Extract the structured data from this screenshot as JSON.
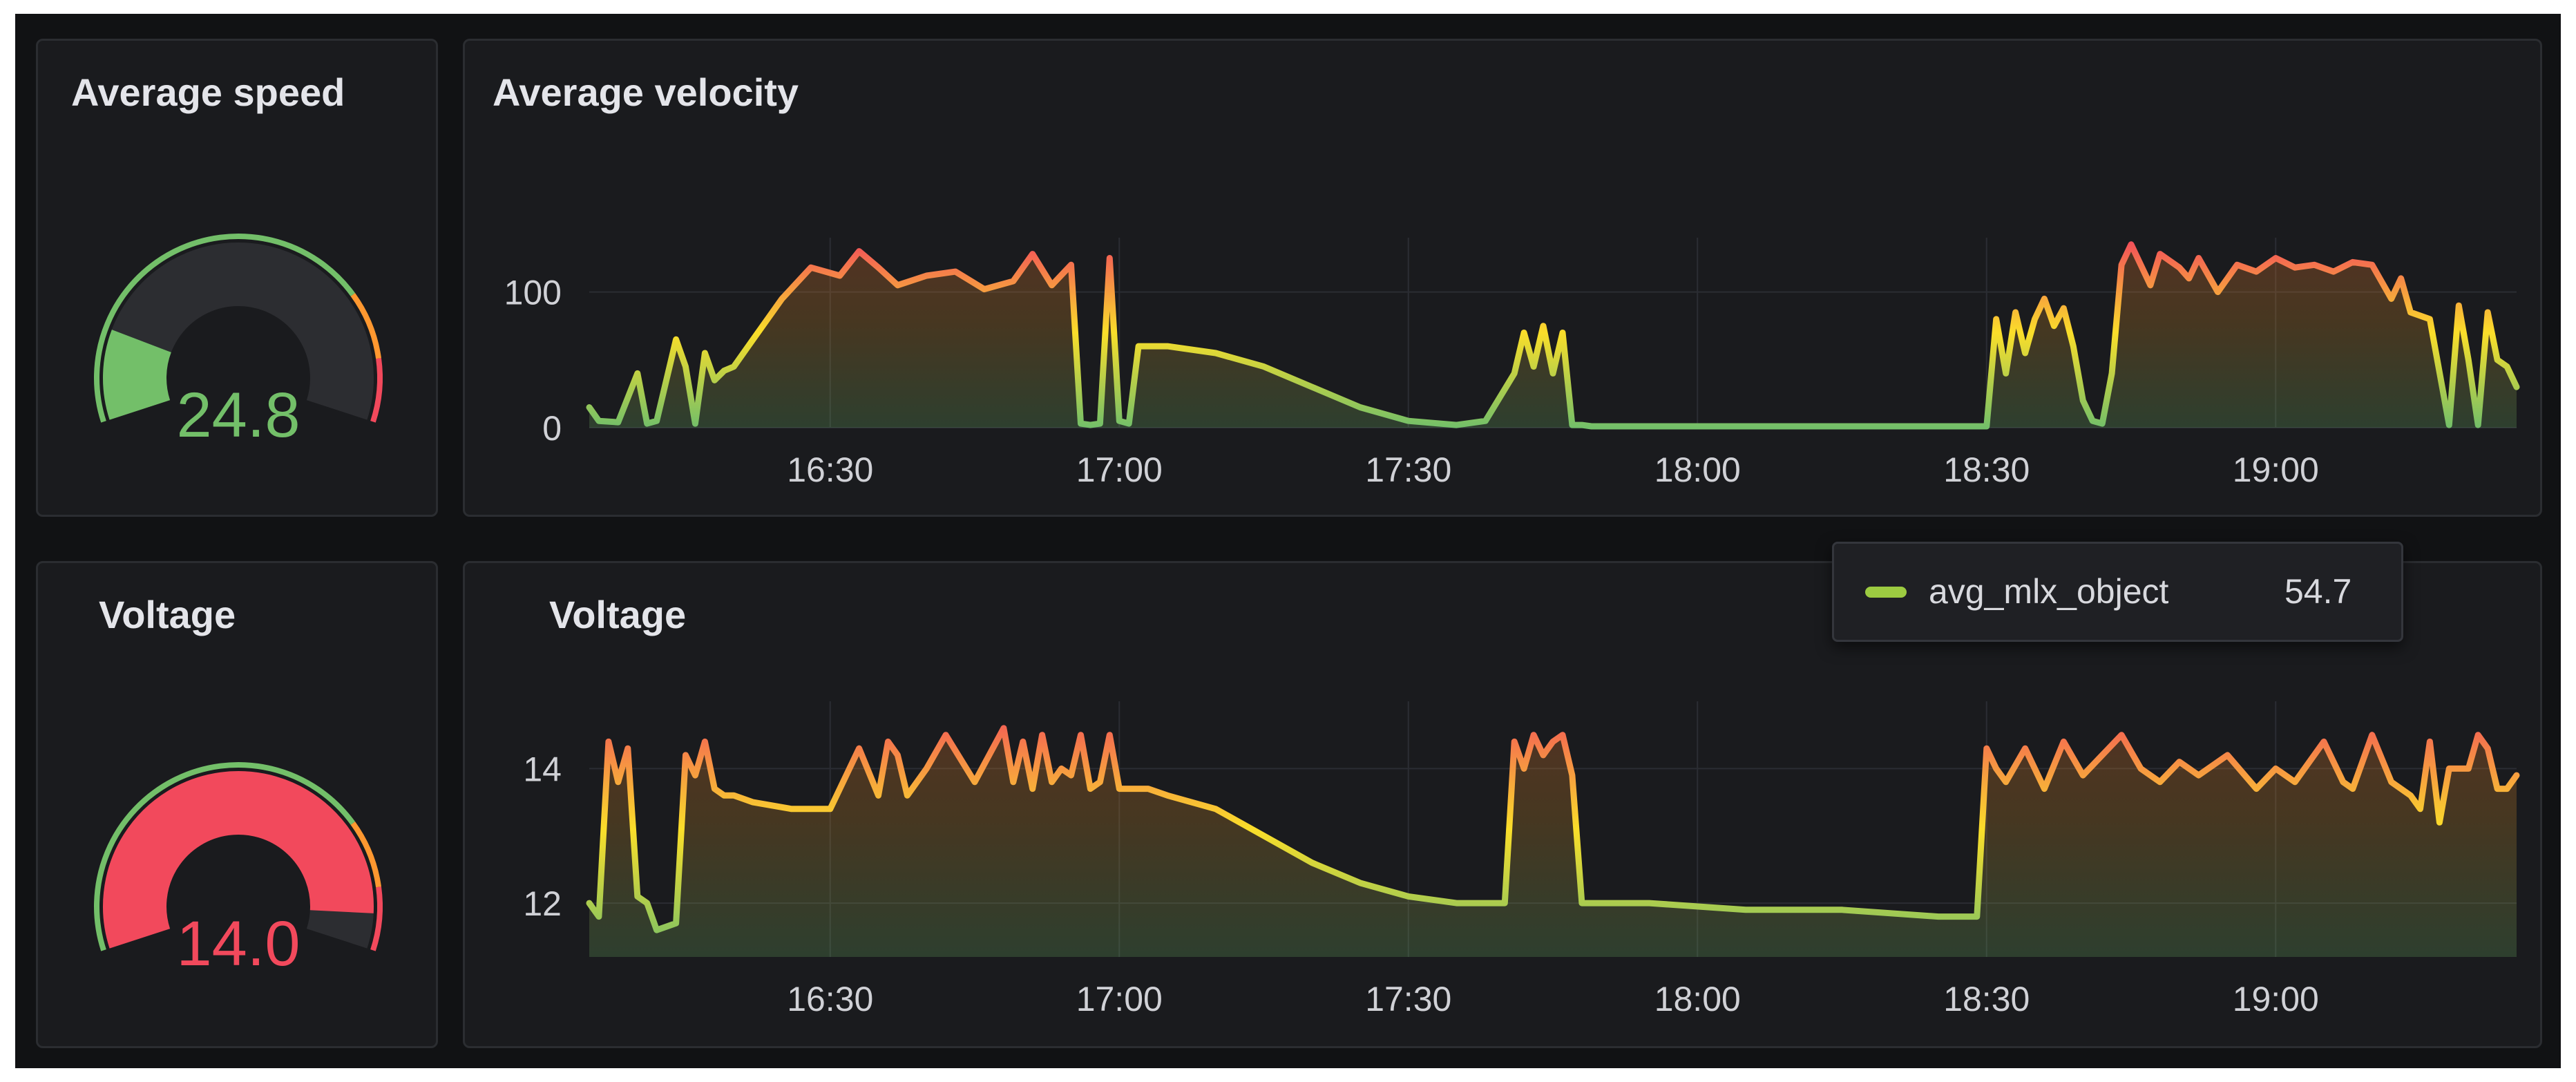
{
  "colors": {
    "background": "#111214",
    "panel": "#1a1b1e",
    "panel_border": "#2b2d31",
    "text": "#e4e5ea",
    "axis_text": "#d0d1d6",
    "series_low": "#73bf69",
    "series_mid": "#fade2a",
    "series_high": "#f2495c",
    "speed_value": "#73bf69",
    "voltage_value": "#f2495c"
  },
  "panels": {
    "speed_gauge": {
      "title": "Average speed",
      "value": "24.8"
    },
    "velocity_chart": {
      "title": "Average velocity"
    },
    "voltage_gauge": {
      "title": "Voltage",
      "value": "14.0"
    },
    "voltage_chart": {
      "title": "Voltage"
    }
  },
  "tooltip": {
    "series": "avg_mlx_object",
    "value": "54.7",
    "swatch_color": "#9ccb41"
  },
  "chart_data": [
    {
      "type": "line",
      "id": "velocity",
      "title": "Average velocity",
      "xlabel": "",
      "ylabel": "",
      "xlim": [
        "16:05",
        "19:25"
      ],
      "ylim": [
        0,
        140
      ],
      "x_ticks": [
        "16:30",
        "17:00",
        "17:30",
        "18:00",
        "18:30",
        "19:00"
      ],
      "y_ticks": [
        0,
        100
      ],
      "grid": true,
      "fill": "gradient",
      "series": [
        {
          "x": [
            "16:05",
            "16:06",
            "16:08",
            "16:10",
            "16:11",
            "16:12",
            "16:14",
            "16:15",
            "16:16",
            "16:17",
            "16:18",
            "16:19",
            "16:20",
            "16:22",
            "16:25",
            "16:28",
            "16:31",
            "16:33",
            "16:35",
            "16:37",
            "16:40",
            "16:43",
            "16:46",
            "16:49",
            "16:51",
            "16:53",
            "16:55",
            "16:56",
            "16:57",
            "16:58",
            "16:59",
            "17:00",
            "17:01",
            "17:02",
            "17:05",
            "17:10",
            "17:15",
            "17:20",
            "17:25",
            "17:30",
            "17:35",
            "17:38",
            "17:41",
            "17:42",
            "17:43",
            "17:44",
            "17:45",
            "17:46",
            "17:47",
            "17:48",
            "17:49",
            "17:55",
            "18:05",
            "18:15",
            "18:25",
            "18:30",
            "18:31",
            "18:32",
            "18:33",
            "18:34",
            "18:35",
            "18:36",
            "18:37",
            "18:38",
            "18:39",
            "18:40",
            "18:41",
            "18:42",
            "18:43",
            "18:44",
            "18:45",
            "18:47",
            "18:48",
            "18:50",
            "18:51",
            "18:52",
            "18:54",
            "18:56",
            "18:58",
            "19:00",
            "19:02",
            "19:04",
            "19:06",
            "19:08",
            "19:10",
            "19:12",
            "19:13",
            "19:14",
            "19:16",
            "19:18",
            "19:19",
            "19:20",
            "19:21",
            "19:22",
            "19:23",
            "19:24",
            "19:25"
          ],
          "values": [
            15,
            5,
            4,
            40,
            3,
            5,
            65,
            45,
            3,
            55,
            35,
            42,
            45,
            65,
            95,
            118,
            112,
            130,
            118,
            105,
            112,
            115,
            102,
            108,
            128,
            105,
            120,
            3,
            2,
            3,
            125,
            5,
            3,
            60,
            60,
            55,
            45,
            30,
            15,
            5,
            2,
            5,
            40,
            70,
            45,
            75,
            40,
            70,
            2,
            2,
            1,
            1,
            1,
            1,
            1,
            1,
            80,
            40,
            85,
            55,
            80,
            95,
            75,
            88,
            60,
            20,
            5,
            3,
            40,
            120,
            135,
            105,
            128,
            118,
            110,
            125,
            100,
            120,
            115,
            125,
            118,
            120,
            115,
            122,
            120,
            95,
            110,
            85,
            80,
            2,
            90,
            50,
            2,
            85,
            50,
            45,
            30
          ]
        }
      ]
    },
    {
      "type": "line",
      "id": "voltage",
      "title": "Voltage",
      "xlabel": "",
      "ylabel": "",
      "xlim": [
        "16:05",
        "19:25"
      ],
      "ylim": [
        11.2,
        15.0
      ],
      "x_ticks": [
        "16:30",
        "17:00",
        "17:30",
        "18:00",
        "18:30",
        "19:00"
      ],
      "y_ticks": [
        12,
        14
      ],
      "grid": true,
      "fill": "gradient",
      "series": [
        {
          "x": [
            "16:05",
            "16:06",
            "16:07",
            "16:08",
            "16:09",
            "16:10",
            "16:11",
            "16:12",
            "16:14",
            "16:15",
            "16:16",
            "16:17",
            "16:18",
            "16:19",
            "16:20",
            "16:22",
            "16:26",
            "16:30",
            "16:33",
            "16:35",
            "16:36",
            "16:37",
            "16:38",
            "16:40",
            "16:42",
            "16:45",
            "16:48",
            "16:49",
            "16:50",
            "16:51",
            "16:52",
            "16:53",
            "16:54",
            "16:55",
            "16:56",
            "16:57",
            "16:58",
            "16:59",
            "17:00",
            "17:01",
            "17:02",
            "17:03",
            "17:05",
            "17:10",
            "17:15",
            "17:20",
            "17:25",
            "17:30",
            "17:35",
            "17:40",
            "17:41",
            "17:42",
            "17:43",
            "17:44",
            "17:45",
            "17:46",
            "17:47",
            "17:48",
            "17:49",
            "17:50",
            "17:55",
            "18:05",
            "18:15",
            "18:25",
            "18:29",
            "18:30",
            "18:31",
            "18:32",
            "18:34",
            "18:36",
            "18:38",
            "18:40",
            "18:42",
            "18:44",
            "18:46",
            "18:48",
            "18:50",
            "18:52",
            "18:55",
            "18:58",
            "19:00",
            "19:02",
            "19:05",
            "19:07",
            "19:08",
            "19:10",
            "19:12",
            "19:14",
            "19:15",
            "19:16",
            "19:17",
            "19:18",
            "19:20",
            "19:21",
            "19:22",
            "19:23",
            "19:24",
            "19:25"
          ],
          "values": [
            12.0,
            11.8,
            14.4,
            13.8,
            14.3,
            12.1,
            12.0,
            11.6,
            11.7,
            14.2,
            13.9,
            14.4,
            13.7,
            13.6,
            13.6,
            13.5,
            13.4,
            13.4,
            14.3,
            13.6,
            14.4,
            14.2,
            13.6,
            14.0,
            14.5,
            13.8,
            14.6,
            13.8,
            14.4,
            13.7,
            14.5,
            13.8,
            14.0,
            13.9,
            14.5,
            13.7,
            13.8,
            14.5,
            13.7,
            13.7,
            13.7,
            13.7,
            13.6,
            13.4,
            13.0,
            12.6,
            12.3,
            12.1,
            12.0,
            12.0,
            14.4,
            14.0,
            14.5,
            14.2,
            14.4,
            14.5,
            13.9,
            12.0,
            12.0,
            12.0,
            12.0,
            11.9,
            11.9,
            11.8,
            11.8,
            14.3,
            14.0,
            13.8,
            14.3,
            13.7,
            14.4,
            13.9,
            14.2,
            14.5,
            14.0,
            13.8,
            14.1,
            13.9,
            14.2,
            13.7,
            14.0,
            13.8,
            14.4,
            13.8,
            13.7,
            14.5,
            13.8,
            13.6,
            13.4,
            14.4,
            13.2,
            14.0,
            14.0,
            14.5,
            14.3,
            13.7,
            13.7,
            13.9
          ]
        }
      ]
    }
  ]
}
